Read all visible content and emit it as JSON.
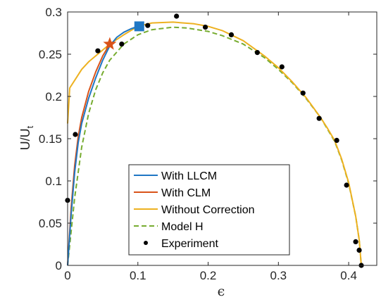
{
  "chart_data": {
    "type": "line",
    "xlabel": "ϵ",
    "ylabel": "U/U",
    "ylabel_subscript": "t",
    "xlim": [
      0,
      0.44
    ],
    "ylim": [
      0,
      0.3
    ],
    "x_ticks": [
      "0",
      "0.1",
      "0.2",
      "0.3",
      "0.4"
    ],
    "y_ticks": [
      "0",
      "0.05",
      "0.1",
      "0.15",
      "0.2",
      "0.25",
      "0.3"
    ],
    "grid": false,
    "legend_position": "bottom-center",
    "colors": {
      "llcm": "#1f77c4",
      "clm": "#d95319",
      "without_correction": "#edb120",
      "model_h": "#77ac30",
      "experiment": "#000000",
      "star_marker": "#d95319",
      "square_marker": "#1f77c4",
      "axes": "#262626"
    },
    "series": [
      {
        "name": "With LLCM",
        "style": "solid",
        "color": "#1f77c4",
        "points": [
          [
            0,
            0
          ],
          [
            0.005,
            0.06
          ],
          [
            0.01,
            0.11
          ],
          [
            0.015,
            0.145
          ],
          [
            0.02,
            0.168
          ],
          [
            0.03,
            0.198
          ],
          [
            0.04,
            0.222
          ],
          [
            0.05,
            0.243
          ],
          [
            0.06,
            0.26
          ],
          [
            0.07,
            0.27
          ],
          [
            0.08,
            0.276
          ],
          [
            0.09,
            0.28
          ],
          [
            0.1,
            0.283
          ]
        ]
      },
      {
        "name": "With CLM",
        "style": "solid",
        "color": "#d95319",
        "points": [
          [
            0,
            0
          ],
          [
            0.005,
            0.068
          ],
          [
            0.01,
            0.118
          ],
          [
            0.015,
            0.152
          ],
          [
            0.02,
            0.175
          ],
          [
            0.03,
            0.206
          ],
          [
            0.04,
            0.229
          ],
          [
            0.05,
            0.248
          ],
          [
            0.06,
            0.262
          ]
        ]
      },
      {
        "name": "Without Correction",
        "style": "solid",
        "color": "#edb120",
        "points": [
          [
            0,
            0.168
          ],
          [
            0.003,
            0.21
          ],
          [
            0.01,
            0.219
          ],
          [
            0.02,
            0.232
          ],
          [
            0.03,
            0.241
          ],
          [
            0.04,
            0.248
          ],
          [
            0.05,
            0.255
          ],
          [
            0.06,
            0.262
          ],
          [
            0.08,
            0.273
          ],
          [
            0.1,
            0.283
          ],
          [
            0.12,
            0.287
          ],
          [
            0.15,
            0.288
          ],
          [
            0.18,
            0.286
          ],
          [
            0.2,
            0.283
          ],
          [
            0.22,
            0.278
          ],
          [
            0.25,
            0.266
          ],
          [
            0.28,
            0.248
          ],
          [
            0.3,
            0.234
          ],
          [
            0.32,
            0.217
          ],
          [
            0.34,
            0.198
          ],
          [
            0.36,
            0.175
          ],
          [
            0.37,
            0.162
          ],
          [
            0.38,
            0.148
          ],
          [
            0.39,
            0.126
          ],
          [
            0.4,
            0.098
          ],
          [
            0.41,
            0.058
          ],
          [
            0.415,
            0.03
          ],
          [
            0.418,
            0.0
          ]
        ]
      },
      {
        "name": "Model H",
        "style": "dashed",
        "color": "#77ac30",
        "points": [
          [
            0,
            0
          ],
          [
            0.005,
            0.04
          ],
          [
            0.01,
            0.08
          ],
          [
            0.02,
            0.14
          ],
          [
            0.03,
            0.18
          ],
          [
            0.04,
            0.208
          ],
          [
            0.05,
            0.228
          ],
          [
            0.06,
            0.243
          ],
          [
            0.08,
            0.262
          ],
          [
            0.1,
            0.273
          ],
          [
            0.12,
            0.279
          ],
          [
            0.15,
            0.282
          ],
          [
            0.17,
            0.281
          ],
          [
            0.2,
            0.277
          ],
          [
            0.22,
            0.272
          ],
          [
            0.25,
            0.262
          ],
          [
            0.28,
            0.246
          ],
          [
            0.3,
            0.232
          ],
          [
            0.32,
            0.216
          ],
          [
            0.34,
            0.197
          ],
          [
            0.36,
            0.175
          ],
          [
            0.37,
            0.161
          ],
          [
            0.38,
            0.147
          ],
          [
            0.39,
            0.125
          ],
          [
            0.4,
            0.097
          ],
          [
            0.41,
            0.058
          ],
          [
            0.415,
            0.03
          ],
          [
            0.418,
            0.0
          ]
        ]
      },
      {
        "name": "Experiment",
        "style": "markers",
        "color": "#000000",
        "points": [
          [
            0.0,
            0.077
          ],
          [
            0.011,
            0.155
          ],
          [
            0.043,
            0.254
          ],
          [
            0.077,
            0.262
          ],
          [
            0.114,
            0.284
          ],
          [
            0.155,
            0.295
          ],
          [
            0.196,
            0.282
          ],
          [
            0.233,
            0.273
          ],
          [
            0.27,
            0.252
          ],
          [
            0.305,
            0.235
          ],
          [
            0.335,
            0.204
          ],
          [
            0.358,
            0.174
          ],
          [
            0.383,
            0.148
          ],
          [
            0.397,
            0.095
          ],
          [
            0.41,
            0.028
          ],
          [
            0.415,
            0.018
          ],
          [
            0.418,
            0.0
          ]
        ]
      }
    ],
    "special_markers": [
      {
        "shape": "star",
        "color": "#d95319",
        "x": 0.06,
        "y": 0.262
      },
      {
        "shape": "square",
        "color": "#1f77c4",
        "x": 0.102,
        "y": 0.283
      }
    ]
  }
}
